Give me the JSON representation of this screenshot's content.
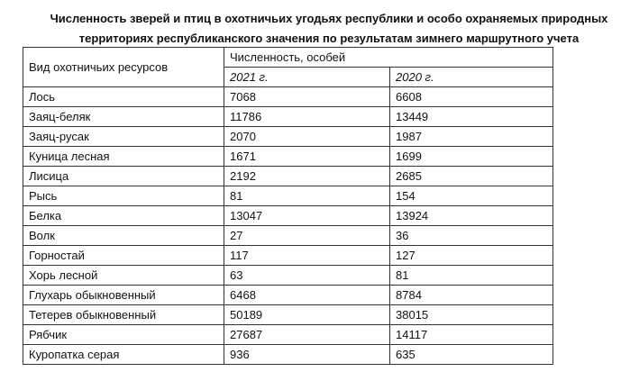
{
  "title": {
    "line1": "Численность зверей и птиц в охотничьих угодьях республики и особо охраняемых природных",
    "line2": "территориях республиканского значения по результатам зимнего маршрутного учета"
  },
  "table": {
    "header": {
      "species": "Вид охотничьих ресурсов",
      "count": "Численность, особей",
      "year1": "2021 г.",
      "year2": "2020 г."
    },
    "rows": [
      {
        "name": "Лось",
        "v2021": "7068",
        "v2020": "6608"
      },
      {
        "name": "Заяц-беляк",
        "v2021": "11786",
        "v2020": "13449"
      },
      {
        "name": "Заяц-русак",
        "v2021": "2070",
        "v2020": "1987"
      },
      {
        "name": "Куница лесная",
        "v2021": "1671",
        "v2020": "1699"
      },
      {
        "name": "Лисица",
        "v2021": "2192",
        "v2020": "2685"
      },
      {
        "name": "Рысь",
        "v2021": "81",
        "v2020": "154"
      },
      {
        "name": "Белка",
        "v2021": "13047",
        "v2020": "13924"
      },
      {
        "name": "Волк",
        "v2021": "27",
        "v2020": "36"
      },
      {
        "name": "Горностай",
        "v2021": "117",
        "v2020": "127"
      },
      {
        "name": "Хорь лесной",
        "v2021": "63",
        "v2020": "81"
      },
      {
        "name": "Глухарь обыкновенный",
        "v2021": "6468",
        "v2020": "8784"
      },
      {
        "name": "Тетерев обыкновенный",
        "v2021": "50189",
        "v2020": "38015"
      },
      {
        "name": "Рябчик",
        "v2021": "27687",
        "v2020": "14117"
      },
      {
        "name": "Куропатка серая",
        "v2021": "936",
        "v2020": "635"
      }
    ]
  }
}
